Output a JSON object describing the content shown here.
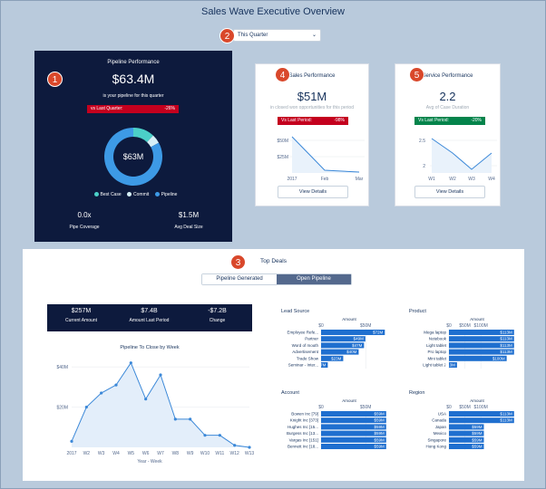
{
  "title": "Sales Wave Executive Overview",
  "filter": {
    "selected": "This Quarter"
  },
  "badges": [
    "1",
    "2",
    "3",
    "4",
    "5"
  ],
  "pipeline": {
    "title": "Pipeline Performance",
    "amount": "$63.4M",
    "subtitle": "is your pipeline for this quarter",
    "vs_label": "vs Last Quarter:",
    "vs_value": "-26%",
    "donut_center": "$63M",
    "donut_values": [
      {
        "name": "Best Case",
        "value": 12
      },
      {
        "name": "Commit",
        "value": 5
      },
      {
        "name": "Pipeline",
        "value": 83
      }
    ],
    "legend": [
      "Best Case",
      "Commit",
      "Pipeline"
    ],
    "coverage_value": "0.0x",
    "coverage_label": "Pipe Coverage",
    "deal_value": "$1.5M",
    "deal_label": "Avg Deal Size",
    "colors": {
      "best_case": "#4bd0c8",
      "commit": "#d6f0f7",
      "pipeline": "#3d9ae6"
    }
  },
  "sales": {
    "title": "Sales Performance",
    "value": "$51M",
    "subtitle": "in closed won opportunities for this period",
    "vs_label": "Vs Last Period:",
    "vs_value": "-98%",
    "button": "View Details",
    "yticks": [
      "$50M",
      "$25M"
    ],
    "xticks": [
      "2017",
      "Feb",
      "Mar"
    ]
  },
  "service": {
    "title": "Service Performance",
    "value": "2.2",
    "subtitle": "Avg of Case Duration",
    "vs_label": "Vs Last Period:",
    "vs_value": "-20%",
    "button": "View Details",
    "yticks": [
      "2.5",
      "2"
    ],
    "xticks": [
      "W1",
      "W2",
      "W3",
      "W4"
    ]
  },
  "deals": {
    "title": "Top Deals",
    "tabs": [
      "Pipeline Generated",
      "Open Pipeline"
    ],
    "kpis": [
      {
        "value": "$257M",
        "label": "Current Amount"
      },
      {
        "value": "$7.4B",
        "label": "Amount Last Period"
      },
      {
        "value": "-$7.2B",
        "label": "Change"
      }
    ],
    "chart_title": "Pipeline To Close by Week",
    "xlabel": "Year - Week",
    "chart_yticks": [
      "$40M",
      "$20M"
    ],
    "chart_xticks": [
      "2017",
      "W2",
      "W3",
      "W4",
      "W5",
      "W6",
      "W7",
      "W8",
      "W9",
      "W10",
      "W11",
      "W12",
      "W13"
    ]
  },
  "chart_data": {
    "type": "area",
    "title": "Pipeline To Close by Week",
    "xlabel": "Year - Week",
    "ylabel": "",
    "categories": [
      "2017",
      "W2",
      "W3",
      "W4",
      "W5",
      "W6",
      "W7",
      "W8",
      "W9",
      "W10",
      "W11",
      "W12",
      "W13"
    ],
    "values": [
      3,
      20,
      27,
      31,
      42,
      24,
      36,
      14,
      14,
      6,
      6,
      1,
      0
    ],
    "ylim": [
      0,
      45
    ]
  },
  "lead_source": {
    "title": "Lead Source",
    "amount_label": "Amount",
    "ticks": [
      "$0",
      "$50M"
    ],
    "rows": [
      {
        "label": "Employee Refe...",
        "value": "$72M",
        "pct": 0.95
      },
      {
        "label": "Partner",
        "value": "$49M",
        "pct": 0.66
      },
      {
        "label": "Word of mouth",
        "value": "$47M",
        "pct": 0.64
      },
      {
        "label": "Advertisement",
        "value": "$40M",
        "pct": 0.56
      },
      {
        "label": "Trade Show",
        "value": "$23M",
        "pct": 0.33
      },
      {
        "label": "Seminar - Inter...",
        "value": "$7M",
        "pct": 0.1
      }
    ]
  },
  "product": {
    "title": "Product",
    "amount_label": "Amount",
    "ticks": [
      "$0",
      "$50M",
      "$100M"
    ],
    "rows": [
      {
        "label": "Mega laptop",
        "value": "$113M",
        "pct": 0.97
      },
      {
        "label": "Notebook",
        "value": "$113M",
        "pct": 0.97
      },
      {
        "label": "Light tablet",
        "value": "$113M",
        "pct": 0.97
      },
      {
        "label": "Pro laptop",
        "value": "$113M",
        "pct": 0.97
      },
      {
        "label": "Mini tablet",
        "value": "$100M",
        "pct": 0.86
      },
      {
        "label": "Light tablet 2",
        "value": "$13M",
        "pct": 0.12
      }
    ]
  },
  "account": {
    "title": "Account",
    "amount_label": "Amount",
    "ticks": [
      "$0",
      "$50M"
    ],
    "rows": [
      {
        "label": "Bowen Inc [79]",
        "value": "$59M",
        "pct": 0.97
      },
      {
        "label": "Knight Inc [373]",
        "value": "$59M",
        "pct": 0.97
      },
      {
        "label": "Hughes Inc [15...",
        "value": "$59M",
        "pct": 0.97
      },
      {
        "label": "Burgess Inc [13...",
        "value": "$59M",
        "pct": 0.97
      },
      {
        "label": "Vargas Inc [151]",
        "value": "$59M",
        "pct": 0.97
      },
      {
        "label": "Bennett Inc [18...",
        "value": "$59M",
        "pct": 0.97
      }
    ]
  },
  "region": {
    "title": "Region",
    "amount_label": "Amount",
    "ticks": [
      "$0",
      "$50M",
      "$100M"
    ],
    "rows": [
      {
        "label": "USA",
        "value": "$113M",
        "pct": 0.97
      },
      {
        "label": "Canada",
        "value": "$113M",
        "pct": 0.97
      },
      {
        "label": "Japan",
        "value": "$59M",
        "pct": 0.52
      },
      {
        "label": "Mexico",
        "value": "$59M",
        "pct": 0.52
      },
      {
        "label": "Singapore",
        "value": "$59M",
        "pct": 0.52
      },
      {
        "label": "Hong Kong",
        "value": "$59M",
        "pct": 0.52
      }
    ]
  }
}
